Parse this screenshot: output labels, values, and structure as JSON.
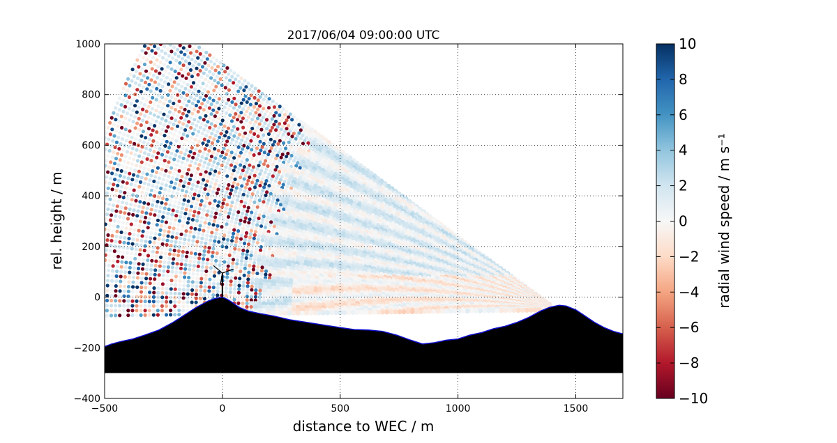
{
  "chart_data": {
    "type": "scatter",
    "title": "2017/06/04 09:00:00 UTC",
    "xlabel": "distance to WEC / m",
    "ylabel": "rel. height / m",
    "xlim": [
      -500,
      1700
    ],
    "ylim": [
      -400,
      1000
    ],
    "x_ticks": [
      -500,
      0,
      500,
      1000,
      1500
    ],
    "x_tick_labels": [
      "−500",
      "0",
      "500",
      "1000",
      "1500"
    ],
    "y_ticks": [
      -400,
      -200,
      0,
      200,
      400,
      600,
      800,
      1000
    ],
    "y_tick_labels": [
      "−400",
      "−200",
      "0",
      "200",
      "400",
      "600",
      "800",
      "1000"
    ],
    "grid": true,
    "grid_style": "dotted",
    "colormap": "RdBu",
    "colorbar": {
      "label": "radial wind speed / m s⁻¹",
      "range": [
        -10,
        10
      ],
      "ticks": [
        -10,
        -8,
        -6,
        -4,
        -2,
        0,
        2,
        4,
        6,
        8,
        10
      ],
      "tick_labels": [
        "−10",
        "−8",
        "−6",
        "−4",
        "−2",
        "0",
        "2",
        "4",
        "6",
        "8",
        "10"
      ]
    },
    "scan": {
      "lidar_position": [
        1420,
        -50
      ],
      "max_range": 2050,
      "elevation_top_deg": 35,
      "beam_count": 60,
      "typical_speed": 1,
      "noise_start_range": 1300
    },
    "terrain": {
      "x": [
        -500,
        -470,
        -430,
        -380,
        -330,
        -270,
        -210,
        -160,
        -110,
        -60,
        -30,
        0,
        20,
        40,
        70,
        110,
        160,
        220,
        290,
        360,
        430,
        500,
        560,
        620,
        680,
        740,
        800,
        850,
        900,
        950,
        1000,
        1050,
        1100,
        1150,
        1200,
        1250,
        1300,
        1350,
        1390,
        1430,
        1460,
        1500,
        1540,
        1580,
        1620,
        1660,
        1700
      ],
      "y": [
        -195,
        -185,
        -175,
        -165,
        -150,
        -130,
        -100,
        -70,
        -40,
        -15,
        -5,
        0,
        -8,
        -20,
        -40,
        -55,
        -65,
        -75,
        -90,
        -100,
        -110,
        -120,
        -128,
        -130,
        -135,
        -150,
        -170,
        -185,
        -180,
        -170,
        -165,
        -150,
        -140,
        -125,
        -115,
        -100,
        -80,
        -55,
        -40,
        -32,
        -35,
        -50,
        -75,
        -100,
        -120,
        -135,
        -145
      ],
      "base": -300,
      "fill_color": "#000000",
      "outline_color": "#1010d0"
    },
    "turbine": {
      "x": 0,
      "hub_height": 95,
      "rotor_radius": 50
    }
  }
}
